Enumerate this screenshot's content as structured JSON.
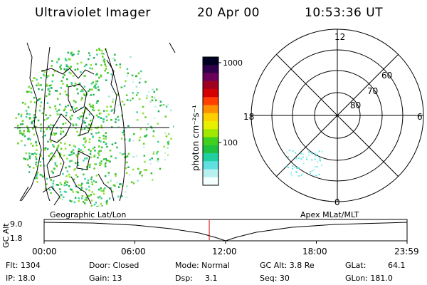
{
  "header": {
    "instrument": "Ultraviolet Imager",
    "date": "20 Apr 00",
    "time": "10:53:36 UT"
  },
  "colorbar": {
    "unit_label": "photon cm⁻²s⁻¹",
    "ticks": [
      "1000",
      "100"
    ],
    "colors": [
      "#000022",
      "#30004a",
      "#6a005a",
      "#a00020",
      "#d40000",
      "#ff4000",
      "#ff9000",
      "#ffd000",
      "#e8f000",
      "#a0e800",
      "#40d020",
      "#20c040",
      "#20d0a0",
      "#60e0e0",
      "#b8f0f0",
      "#f4ffff"
    ]
  },
  "polar": {
    "mlt_labels": {
      "top": "12",
      "left": "18",
      "right": "6",
      "bottom": "0"
    },
    "lat_labels": [
      "60",
      "70",
      "80"
    ]
  },
  "timeline": {
    "left_title": "Geographic Lat/Lon",
    "right_title": "Apex MLat/MLT",
    "axis_label": "GC Alt",
    "y_top": "9.0",
    "y_bottom": "1.8",
    "time_ticks": [
      "00:00",
      "06:00",
      "12:00",
      "18:00",
      "23:59"
    ],
    "marker_fraction": 0.455
  },
  "info": {
    "flt": "Flt: 1304",
    "ip": "IP: 18.0",
    "door": "Door: Closed",
    "gain": "Gain: 13",
    "mode": "Mode: Normal",
    "dsp": "Dsp:",
    "dsp_val": "3.1",
    "gcalt": "GC Alt: 3.8 Re",
    "seq": "Seq: 30",
    "glat": "GLat:",
    "glat_val": "64.1",
    "glon": "GLon: 181.0"
  }
}
